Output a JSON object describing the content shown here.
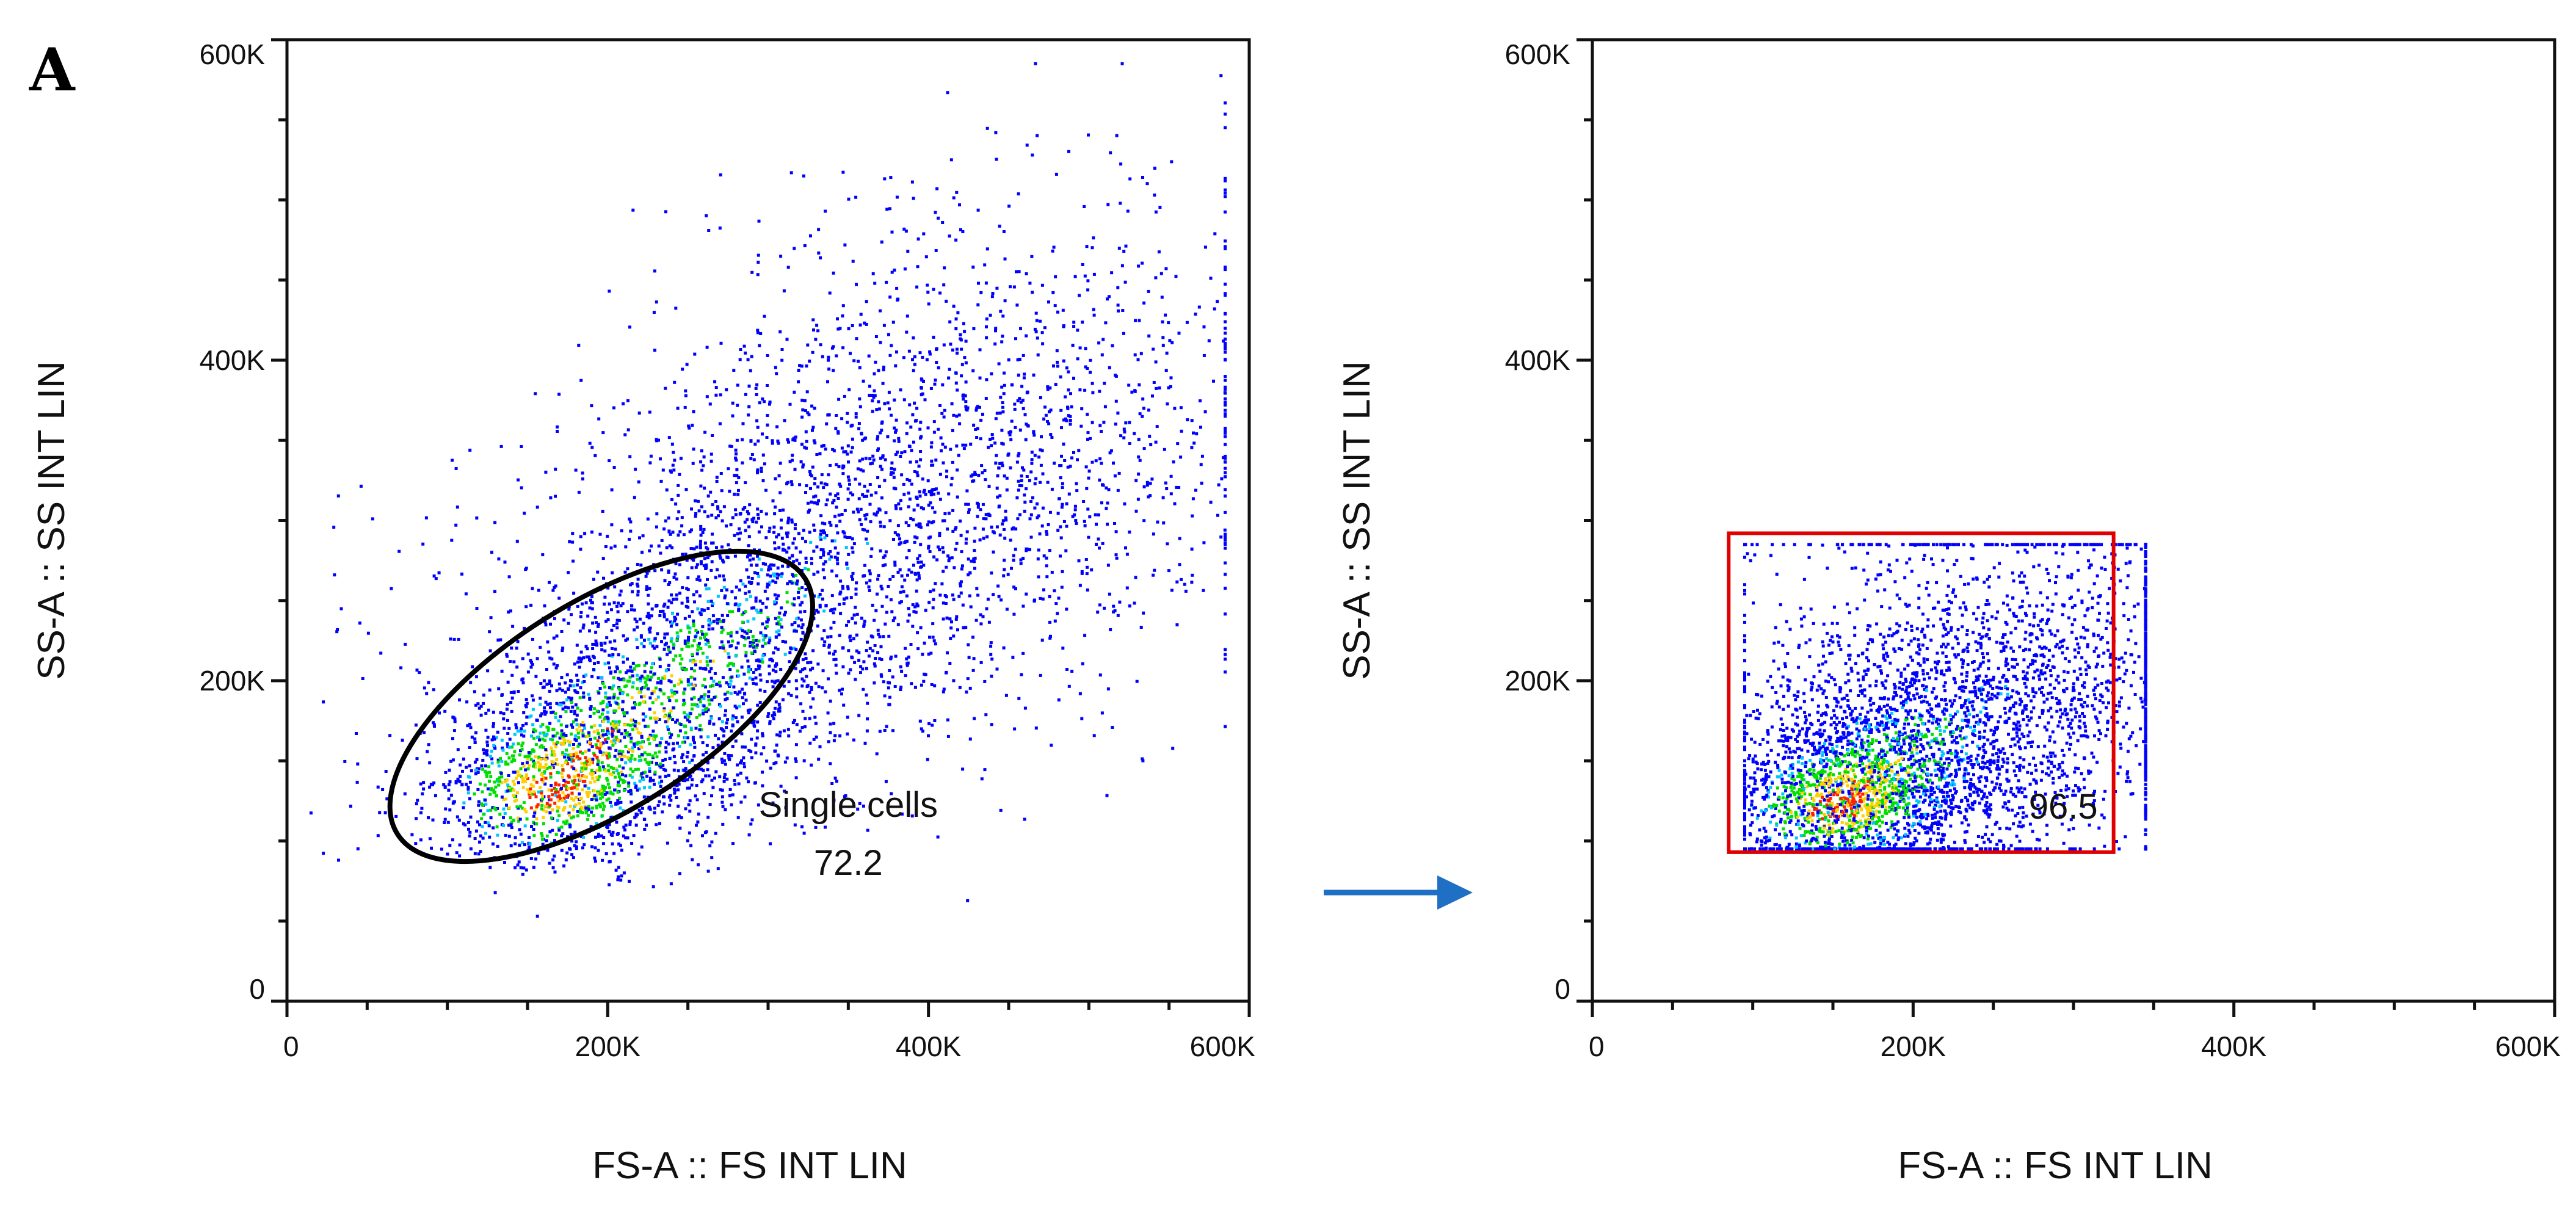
{
  "figure": {
    "panel_label": "A"
  },
  "chart_data": [
    {
      "type": "scatter",
      "title": "",
      "xlabel": "FS-A :: FS INT LIN",
      "ylabel": "SS-A :: SS INT LIN",
      "xlim": [
        0,
        600000
      ],
      "ylim": [
        0,
        600000
      ],
      "xticks": [
        0,
        200000,
        400000,
        600000
      ],
      "xtick_labels": [
        "0",
        "200K",
        "400K",
        "600K"
      ],
      "yticks": [
        0,
        200000,
        400000,
        600000
      ],
      "ytick_labels": [
        "0",
        "200K",
        "400K",
        "600K"
      ],
      "grid": false,
      "legend": "none",
      "density_colors": [
        "#0000ff",
        "#00c8ff",
        "#00e000",
        "#ffd000",
        "#ff2000"
      ],
      "population": {
        "center": [
          160000,
          130000
        ],
        "spread": [
          55000,
          35000
        ],
        "tail_to": [
          560000,
          500000
        ]
      },
      "gate": {
        "shape": "ellipse",
        "name": "Single cells",
        "value": "72.2",
        "center": [
          196000,
          184000
        ],
        "radii": [
          150000,
          65000
        ],
        "rotation_deg": -32,
        "color": "#000000"
      }
    },
    {
      "type": "scatter",
      "title": "",
      "xlabel": "FS-A :: FS INT LIN",
      "ylabel": "SS-A :: SS INT LIN",
      "xlim": [
        0,
        600000
      ],
      "ylim": [
        0,
        600000
      ],
      "xticks": [
        0,
        200000,
        400000,
        600000
      ],
      "xtick_labels": [
        "0",
        "200K",
        "400K",
        "600K"
      ],
      "yticks": [
        0,
        200000,
        400000,
        600000
      ],
      "ytick_labels": [
        "0",
        "200K",
        "400K",
        "600K"
      ],
      "grid": false,
      "legend": "none",
      "density_colors": [
        "#0000ff",
        "#00c8ff",
        "#00e000",
        "#ffd000",
        "#ff2000"
      ],
      "population": {
        "center": [
          150000,
          120000
        ],
        "spread": [
          50000,
          30000
        ],
        "tail_to": [
          345000,
          285000
        ]
      },
      "gate": {
        "shape": "rectangle",
        "value": "96.5",
        "x_range": [
          85000,
          325000
        ],
        "y_range": [
          93000,
          292000
        ],
        "color": "#e00000"
      }
    }
  ],
  "arrow": {
    "color": "#1f6fc5"
  }
}
